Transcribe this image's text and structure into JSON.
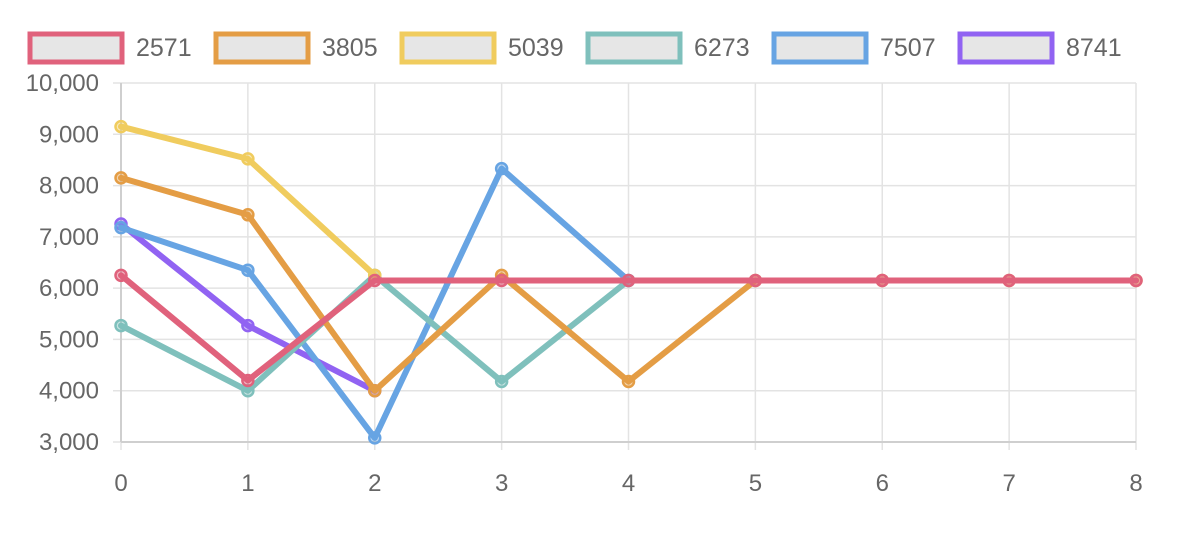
{
  "chart_data": {
    "type": "line",
    "title": "",
    "xlabel": "",
    "ylabel": "",
    "x": [
      0,
      1,
      2,
      3,
      4,
      5,
      6,
      7,
      8
    ],
    "xlim": [
      0,
      8
    ],
    "ylim": [
      3000,
      10000
    ],
    "yticks": [
      3000,
      4000,
      5000,
      6000,
      7000,
      8000,
      9000,
      10000
    ],
    "ytick_labels": [
      "3,000",
      "4,000",
      "5,000",
      "6,000",
      "7,000",
      "8,000",
      "9,000",
      "10,000"
    ],
    "xtick_labels": [
      "0",
      "1",
      "2",
      "3",
      "4",
      "5",
      "6",
      "7",
      "8"
    ],
    "grid": true,
    "legend_position": "top",
    "series": [
      {
        "name": "2571",
        "color": "#e0627c",
        "values": [
          6250,
          4200,
          6150,
          6150,
          6150,
          6150,
          6150,
          6150,
          6150
        ]
      },
      {
        "name": "3805",
        "color": "#e49d45",
        "values": [
          8150,
          7430,
          4000,
          6250,
          4180,
          6150,
          6150,
          6150,
          6150
        ]
      },
      {
        "name": "5039",
        "color": "#f0cc5e",
        "values": [
          9150,
          8520,
          6250,
          null,
          null,
          null,
          null,
          null,
          null
        ]
      },
      {
        "name": "6273",
        "color": "#7fc0bc",
        "values": [
          5270,
          4000,
          6250,
          4180,
          6150,
          null,
          null,
          null,
          null
        ]
      },
      {
        "name": "7507",
        "color": "#67a4e3",
        "values": [
          7180,
          6350,
          3080,
          8330,
          6150,
          null,
          null,
          null,
          null
        ]
      },
      {
        "name": "8741",
        "color": "#9163f2",
        "values": [
          7250,
          5270,
          4000,
          null,
          null,
          null,
          null,
          null,
          null
        ]
      }
    ]
  }
}
